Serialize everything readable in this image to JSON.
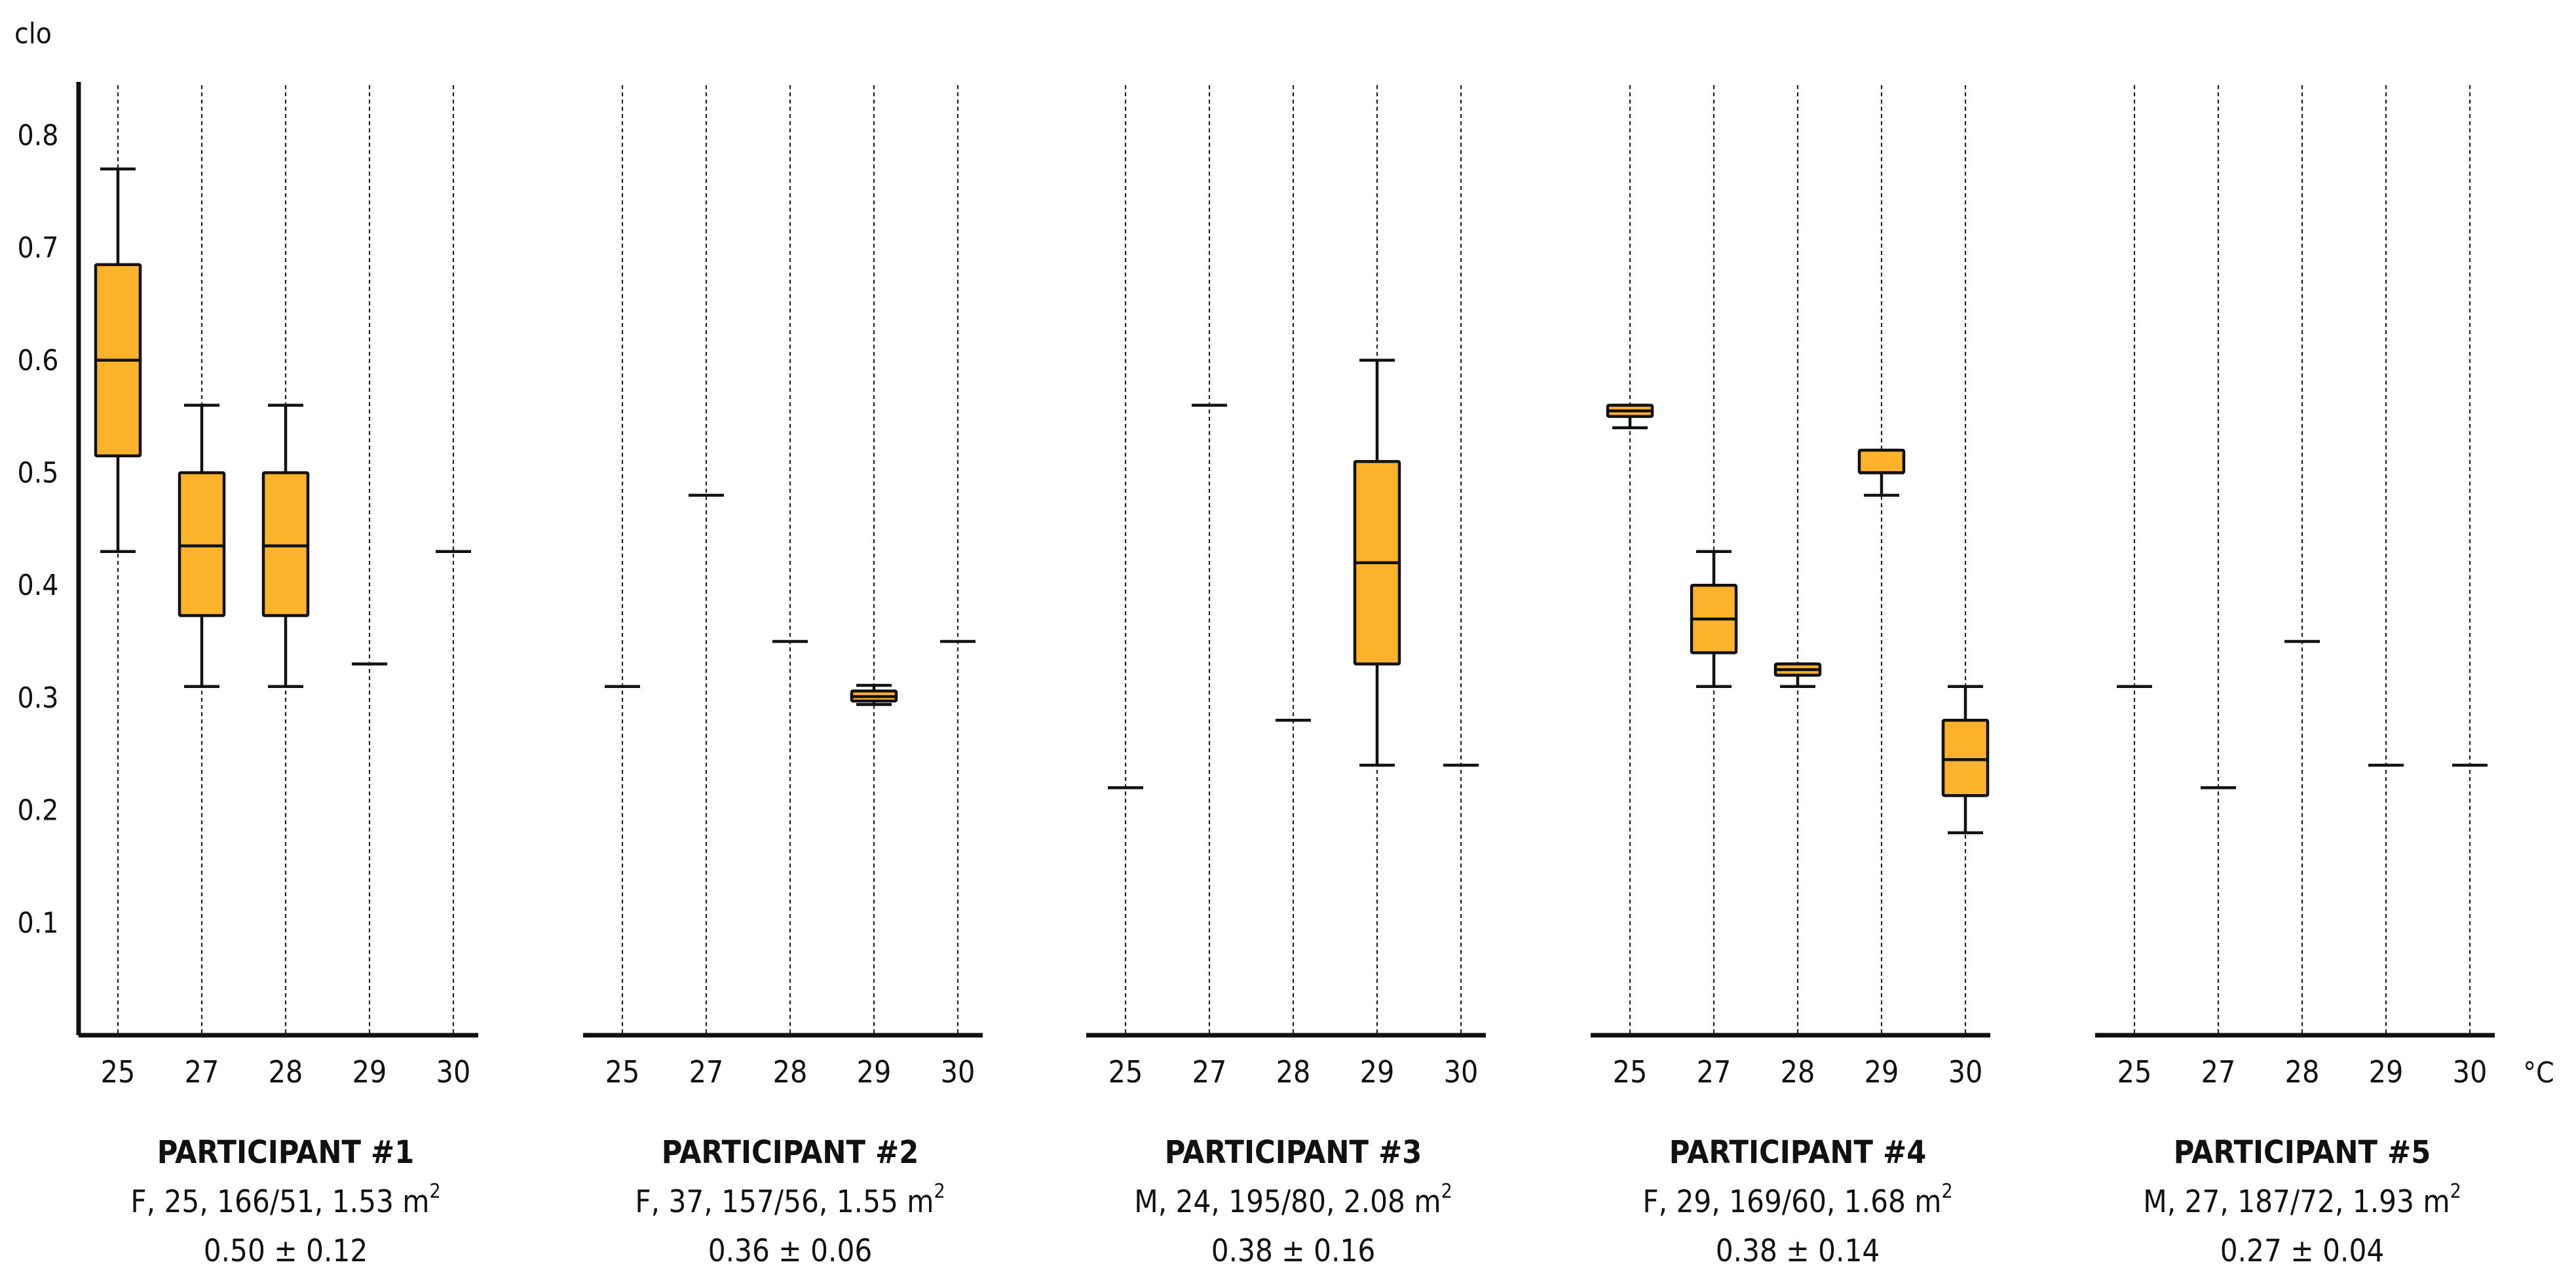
{
  "chart_data": {
    "type": "box",
    "ylabel": "clo",
    "xunit": "°C",
    "ylim": [
      0,
      0.85
    ],
    "yticks": [
      {
        "v": 0.1,
        "label": "0.1"
      },
      {
        "v": 0.2,
        "label": "0.2"
      },
      {
        "v": 0.3,
        "label": "0.3"
      },
      {
        "v": 0.4,
        "label": "0.4"
      },
      {
        "v": 0.5,
        "label": "0.5"
      },
      {
        "v": 0.6,
        "label": "0.6"
      },
      {
        "v": 0.7,
        "label": "0.7"
      },
      {
        "v": 0.8,
        "label": "0.8"
      }
    ],
    "box_color": "#FDB22C",
    "line_color": "#111111",
    "panels": [
      {
        "title": "PARTICIPANT #1",
        "info": "F, 25, 166/51, 1.53 m",
        "info_sup": "2",
        "summary": "0.50 ± 0.12",
        "categories": [
          "25",
          "27",
          "28",
          "29",
          "30"
        ],
        "stats": [
          {
            "min": 0.43,
            "q1": 0.515,
            "median": 0.6,
            "q3": 0.685,
            "max": 0.77
          },
          {
            "min": 0.31,
            "q1": 0.373,
            "median": 0.435,
            "q3": 0.5,
            "max": 0.56
          },
          {
            "min": 0.31,
            "q1": 0.373,
            "median": 0.435,
            "q3": 0.5,
            "max": 0.56
          },
          {
            "min": 0.33,
            "q1": 0.33,
            "median": 0.33,
            "q3": 0.33,
            "max": 0.33
          },
          {
            "min": 0.43,
            "q1": 0.43,
            "median": 0.43,
            "q3": 0.43,
            "max": 0.43
          }
        ]
      },
      {
        "title": "PARTICIPANT #2",
        "info": "F, 37, 157/56, 1.55 m",
        "info_sup": "2",
        "summary": "0.36 ± 0.06",
        "categories": [
          "25",
          "27",
          "28",
          "29",
          "30"
        ],
        "stats": [
          {
            "min": 0.31,
            "q1": 0.31,
            "median": 0.31,
            "q3": 0.31,
            "max": 0.31
          },
          {
            "min": 0.48,
            "q1": 0.48,
            "median": 0.48,
            "q3": 0.48,
            "max": 0.48
          },
          {
            "min": 0.35,
            "q1": 0.35,
            "median": 0.35,
            "q3": 0.35,
            "max": 0.35
          },
          {
            "min": 0.294,
            "q1": 0.297,
            "median": 0.301,
            "q3": 0.306,
            "max": 0.311
          },
          {
            "min": 0.35,
            "q1": 0.35,
            "median": 0.35,
            "q3": 0.35,
            "max": 0.35
          }
        ]
      },
      {
        "title": "PARTICIPANT #3",
        "info": "M, 24, 195/80, 2.08 m",
        "info_sup": "2",
        "summary": "0.38 ± 0.16",
        "categories": [
          "25",
          "27",
          "28",
          "29",
          "30"
        ],
        "stats": [
          {
            "min": 0.22,
            "q1": 0.22,
            "median": 0.22,
            "q3": 0.22,
            "max": 0.22
          },
          {
            "min": 0.56,
            "q1": 0.56,
            "median": 0.56,
            "q3": 0.56,
            "max": 0.56
          },
          {
            "min": 0.28,
            "q1": 0.28,
            "median": 0.28,
            "q3": 0.28,
            "max": 0.28
          },
          {
            "min": 0.24,
            "q1": 0.33,
            "median": 0.42,
            "q3": 0.51,
            "max": 0.6
          },
          {
            "min": 0.24,
            "q1": 0.24,
            "median": 0.24,
            "q3": 0.24,
            "max": 0.24
          }
        ]
      },
      {
        "title": "PARTICIPANT #4",
        "info": "F, 29, 169/60, 1.68 m",
        "info_sup": "2",
        "summary": "0.38 ± 0.14",
        "categories": [
          "25",
          "27",
          "28",
          "29",
          "30"
        ],
        "stats": [
          {
            "min": 0.54,
            "q1": 0.55,
            "median": 0.555,
            "q3": 0.56,
            "max": 0.56
          },
          {
            "min": 0.31,
            "q1": 0.34,
            "median": 0.37,
            "q3": 0.4,
            "max": 0.43
          },
          {
            "min": 0.31,
            "q1": 0.32,
            "median": 0.325,
            "q3": 0.33,
            "max": 0.33
          },
          {
            "min": 0.48,
            "q1": 0.5,
            "median": 0.5,
            "q3": 0.52,
            "max": 0.52
          },
          {
            "min": 0.18,
            "q1": 0.213,
            "median": 0.245,
            "q3": 0.28,
            "max": 0.31
          }
        ]
      },
      {
        "title": "PARTICIPANT #5",
        "info": "M, 27, 187/72, 1.93 m",
        "info_sup": "2",
        "summary": "0.27 ± 0.04",
        "categories": [
          "25",
          "27",
          "28",
          "29",
          "30"
        ],
        "stats": [
          {
            "min": 0.31,
            "q1": 0.31,
            "median": 0.31,
            "q3": 0.31,
            "max": 0.31
          },
          {
            "min": 0.22,
            "q1": 0.22,
            "median": 0.22,
            "q3": 0.22,
            "max": 0.22
          },
          {
            "min": 0.35,
            "q1": 0.35,
            "median": 0.35,
            "q3": 0.35,
            "max": 0.35
          },
          {
            "min": 0.24,
            "q1": 0.24,
            "median": 0.24,
            "q3": 0.24,
            "max": 0.24
          },
          {
            "min": 0.24,
            "q1": 0.24,
            "median": 0.24,
            "q3": 0.24,
            "max": 0.24
          }
        ]
      }
    ]
  }
}
